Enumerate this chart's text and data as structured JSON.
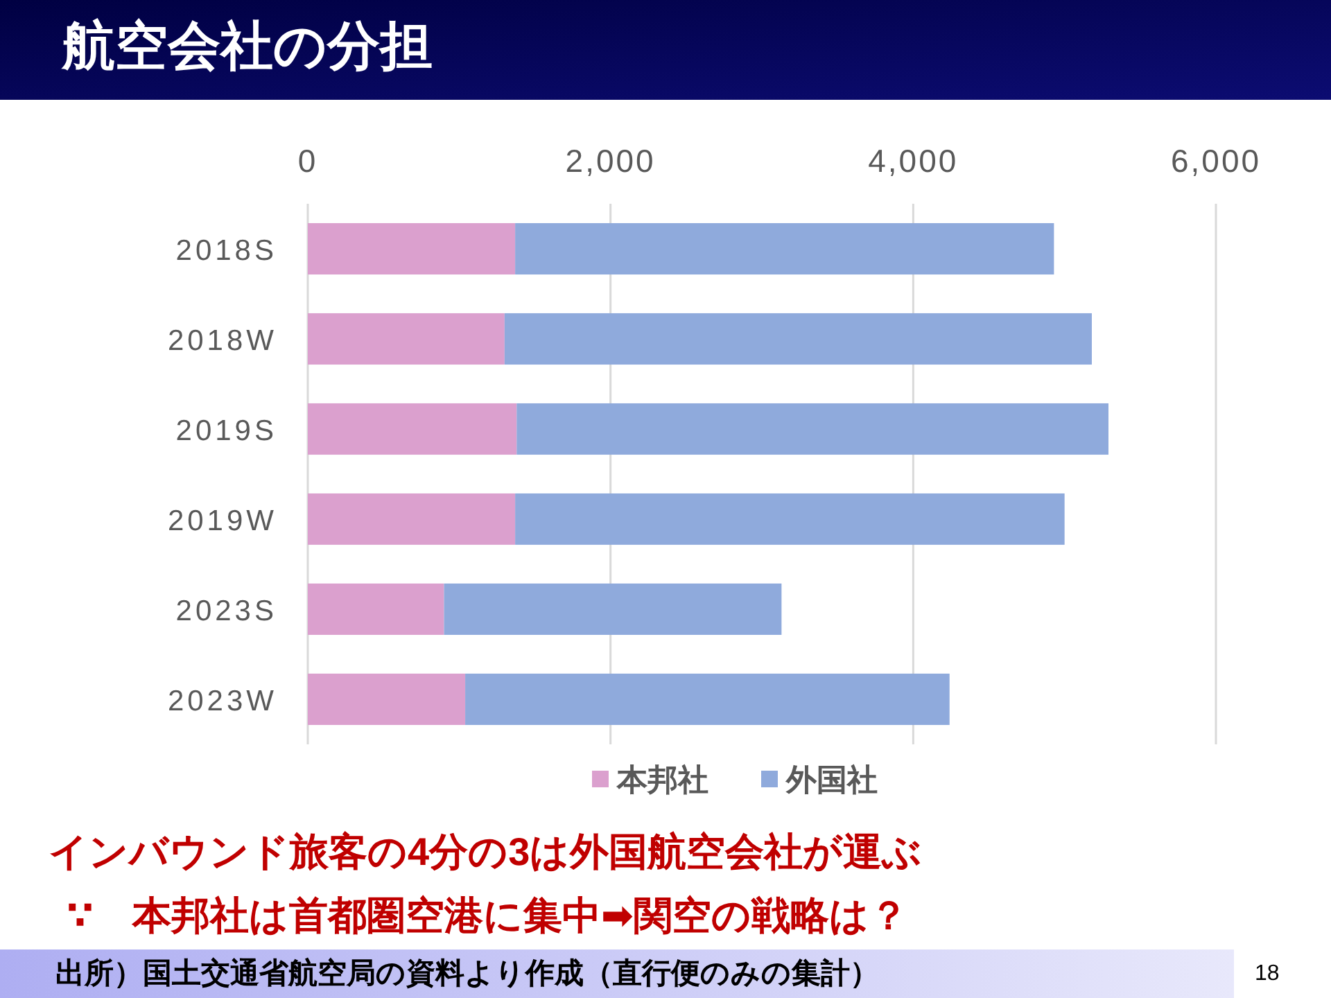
{
  "chart_data": {
    "type": "bar",
    "orientation": "horizontal",
    "stacked": true,
    "title": "航空会社の分担",
    "categories": [
      "2018S",
      "2018W",
      "2019S",
      "2019W",
      "2023S",
      "2023W"
    ],
    "series": [
      {
        "name": "本邦社",
        "color": "#dba0ce",
        "values": [
          1370,
          1300,
          1380,
          1370,
          900,
          1040
        ]
      },
      {
        "name": "外国社",
        "color": "#8faadc",
        "values": [
          3560,
          3880,
          3910,
          3630,
          2230,
          3200
        ]
      }
    ],
    "xlim": [
      0,
      6000
    ],
    "xticks": [
      0,
      {
        "value": 2000,
        "label": "2,000"
      },
      {
        "value": 4000,
        "label": "4,000"
      },
      {
        "value": 6000,
        "label": "6,000"
      }
    ],
    "grid": "x",
    "legend": "bottom",
    "annotations": [
      "インバウンド旅客の4分の3は外国航空会社が運ぶ",
      "∵　本邦社は首都圏空港に集中➡関空の戦略は？",
      "出所）国土交通省航空局の資料より作成（直行便のみの集計）",
      "18"
    ]
  }
}
